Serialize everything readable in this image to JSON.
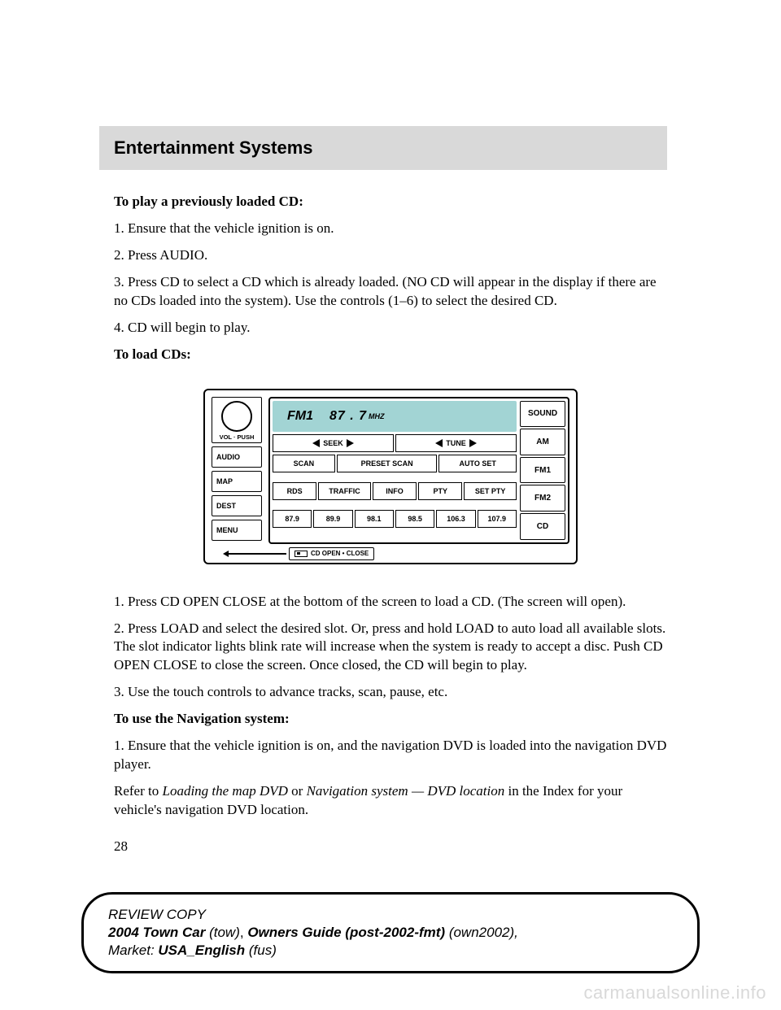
{
  "header": {
    "title": "Entertainment Systems"
  },
  "body": {
    "h1": "To play a previously loaded CD:",
    "p1": "1. Ensure that the vehicle ignition is on.",
    "p2": "2. Press AUDIO.",
    "p3": "3. Press CD to select a CD which is already loaded. (NO CD will appear in the display if there are no CDs loaded into the system). Use the controls (1–6) to select the desired CD.",
    "p4": "4. CD will begin to play.",
    "h2": "To load CDs:",
    "p5": "1. Press CD OPEN CLOSE at the bottom of the screen to load a CD. (The screen will open).",
    "p6": "2. Press LOAD and select the desired slot. Or, press and hold LOAD to auto load all available slots. The slot indicator lights blink rate will increase when the system is ready to accept a disc. Push CD OPEN CLOSE to close the screen. Once closed, the CD will begin to play.",
    "p7": "3. Use the touch controls to advance tracks, scan, pause, etc.",
    "h3": "To use the Navigation system:",
    "p8": "1. Ensure that the vehicle ignition is on, and the navigation DVD is loaded into the navigation DVD player.",
    "p9a": "Refer to ",
    "p9b": "Loading the map DVD",
    "p9c": " or ",
    "p9d": "Navigation system — DVD location",
    "p9e": " in the Index for your vehicle's navigation DVD location.",
    "pagenum": "28"
  },
  "radio": {
    "knob_label": "VOL · PUSH",
    "left_buttons": [
      "AUDIO",
      "MAP",
      "DEST",
      "MENU"
    ],
    "lcd": {
      "band": "FM1",
      "freq": "87 . 7",
      "unit": "MHZ"
    },
    "row1": {
      "seek": "SEEK",
      "tune": "TUNE"
    },
    "row2": [
      "SCAN",
      "PRESET SCAN",
      "AUTO SET"
    ],
    "row3": [
      "RDS",
      "TRAFFIC",
      "INFO",
      "PTY",
      "SET PTY"
    ],
    "row4": [
      "87.9",
      "89.9",
      "98.1",
      "98.5",
      "106.3",
      "107.9"
    ],
    "right_buttons": [
      "SOUND",
      "AM",
      "FM1",
      "FM2",
      "CD"
    ],
    "eject": "CD OPEN • CLOSE",
    "colors": {
      "lcd_bg": "#a2d4d4"
    }
  },
  "footer": {
    "l1": "REVIEW COPY",
    "l2a": "2004 Town Car ",
    "l2b": "(tow)",
    "l2c": ", ",
    "l2d": "Owners Guide (post-2002-fmt) ",
    "l2e": "(own2002)",
    "l2f": ",",
    "l3a": "Market: ",
    "l3b": "USA_English ",
    "l3c": "(fus)"
  },
  "watermark": "carmanualsonline.info"
}
